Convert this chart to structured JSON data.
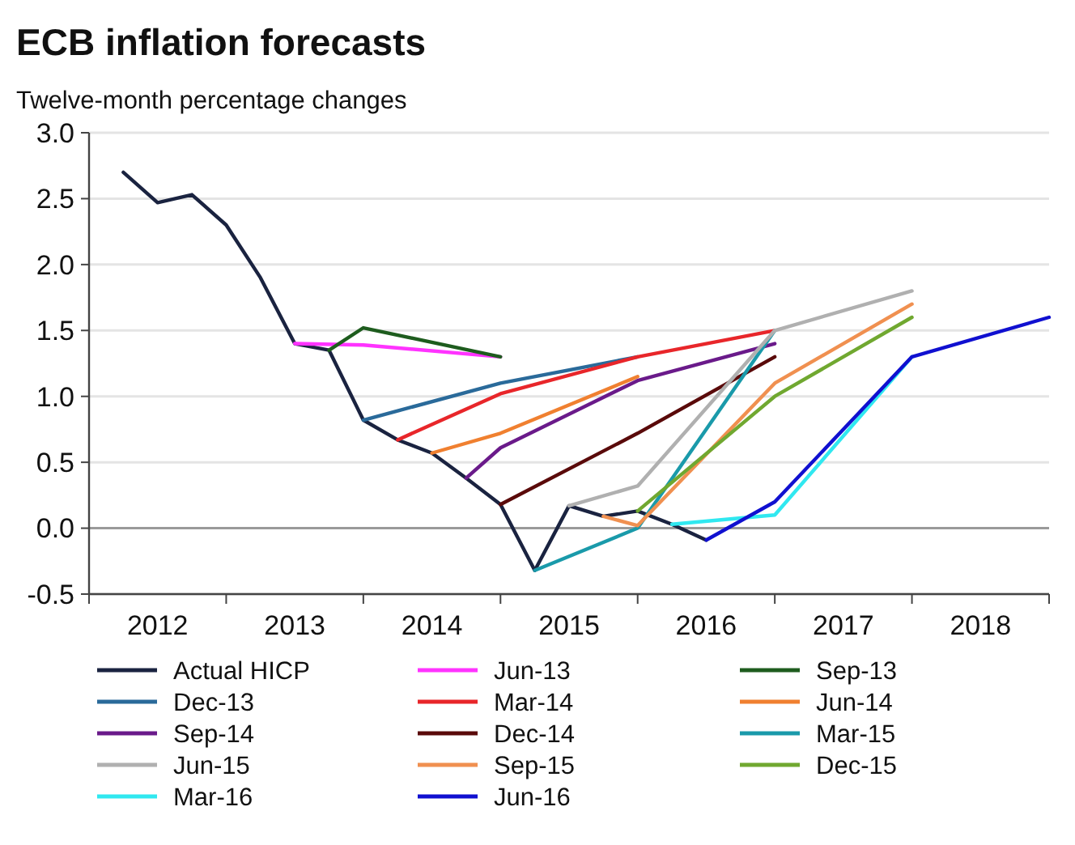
{
  "chart_data": {
    "type": "line",
    "title": "ECB inflation forecasts",
    "subtitle": "Twelve-month percentage changes",
    "xlim": [
      2012,
      2019
    ],
    "xticks": [
      {
        "value": 2012,
        "label": null
      },
      {
        "value": 2012.5,
        "label": "2012"
      },
      {
        "value": 2013,
        "label": null
      },
      {
        "value": 2013.5,
        "label": "2013"
      },
      {
        "value": 2014,
        "label": null
      },
      {
        "value": 2014.5,
        "label": "2014"
      },
      {
        "value": 2015,
        "label": null
      },
      {
        "value": 2015.5,
        "label": "2015"
      },
      {
        "value": 2016,
        "label": null
      },
      {
        "value": 2016.5,
        "label": "2016"
      },
      {
        "value": 2017,
        "label": null
      },
      {
        "value": 2017.5,
        "label": "2017"
      },
      {
        "value": 2018,
        "label": null
      },
      {
        "value": 2018.5,
        "label": "2018"
      },
      {
        "value": 2019,
        "label": null
      }
    ],
    "ylim": [
      -0.5,
      3
    ],
    "yticks": [
      {
        "value": -0.5,
        "label": "-0.5"
      },
      {
        "value": 0,
        "label": "0.0"
      },
      {
        "value": 0.5,
        "label": "0.5"
      },
      {
        "value": 1,
        "label": "1.0"
      },
      {
        "value": 1.5,
        "label": "1.5"
      },
      {
        "value": 2,
        "label": "2.0"
      },
      {
        "value": 2.5,
        "label": "2.5"
      },
      {
        "value": 3,
        "label": "3.0"
      }
    ],
    "grid": "y",
    "legend": "bottom",
    "marker": "none",
    "line_style": "solid",
    "ref_lines": [
      {
        "axis": "y",
        "value": 0,
        "label": null,
        "color": "#9a9a9a"
      }
    ],
    "series": [
      {
        "name": "Actual HICP",
        "color": "#1a2340",
        "x": [
          2012.25,
          2012.5,
          2012.75,
          2013,
          2013.25,
          2013.5,
          2013.75,
          2014,
          2014.25,
          2014.5,
          2014.75,
          2015,
          2015.25,
          2015.5,
          2015.75,
          2016,
          2016.25,
          2016.5
        ],
        "values": [
          2.7,
          2.47,
          2.53,
          2.3,
          1.9,
          1.4,
          1.35,
          0.82,
          0.67,
          0.57,
          0.38,
          0.18,
          -0.32,
          0.17,
          0.09,
          0.13,
          0.03,
          -0.09
        ]
      },
      {
        "name": "Jun-13",
        "color": "#ff33ff",
        "x": [
          2013.5,
          2014,
          2015
        ],
        "values": [
          1.4,
          1.39,
          1.3
        ]
      },
      {
        "name": "Sep-13",
        "color": "#1e5c1e",
        "x": [
          2013.75,
          2014,
          2015
        ],
        "values": [
          1.35,
          1.52,
          1.3
        ]
      },
      {
        "name": "Dec-13",
        "color": "#2a6a9a",
        "x": [
          2014,
          2015,
          2016
        ],
        "values": [
          0.82,
          1.1,
          1.3
        ]
      },
      {
        "name": "Mar-14",
        "color": "#e8262a",
        "x": [
          2014.25,
          2015,
          2016,
          2017
        ],
        "values": [
          0.67,
          1.02,
          1.3,
          1.5
        ]
      },
      {
        "name": "Jun-14",
        "color": "#f08030",
        "x": [
          2014.5,
          2015,
          2016
        ],
        "values": [
          0.57,
          0.72,
          1.15
        ]
      },
      {
        "name": "Sep-14",
        "color": "#6a1a8a",
        "x": [
          2014.75,
          2015,
          2016,
          2017
        ],
        "values": [
          0.38,
          0.61,
          1.12,
          1.4
        ]
      },
      {
        "name": "Dec-14",
        "color": "#5a0a0a",
        "x": [
          2015,
          2016,
          2017
        ],
        "values": [
          0.18,
          0.72,
          1.3
        ]
      },
      {
        "name": "Mar-15",
        "color": "#1a9aaa",
        "x": [
          2015.25,
          2016,
          2017
        ],
        "values": [
          -0.32,
          0,
          1.5
        ]
      },
      {
        "name": "Jun-15",
        "color": "#b0b0b0",
        "x": [
          2015.5,
          2016,
          2017,
          2018
        ],
        "values": [
          0.17,
          0.32,
          1.5,
          1.8
        ]
      },
      {
        "name": "Sep-15",
        "color": "#f09050",
        "x": [
          2015.75,
          2016,
          2017,
          2018
        ],
        "values": [
          0.09,
          0.02,
          1.1,
          1.7
        ]
      },
      {
        "name": "Dec-15",
        "color": "#70a830",
        "x": [
          2016,
          2017,
          2018
        ],
        "values": [
          0.13,
          1,
          1.6
        ]
      },
      {
        "name": "Mar-16",
        "color": "#30e8f0",
        "x": [
          2016.25,
          2017,
          2018
        ],
        "values": [
          0.03,
          0.1,
          1.3
        ]
      },
      {
        "name": "Jun-16",
        "color": "#1010d0",
        "x": [
          2016.5,
          2017,
          2018,
          2019
        ],
        "values": [
          -0.09,
          0.2,
          1.3,
          1.6
        ]
      }
    ]
  }
}
